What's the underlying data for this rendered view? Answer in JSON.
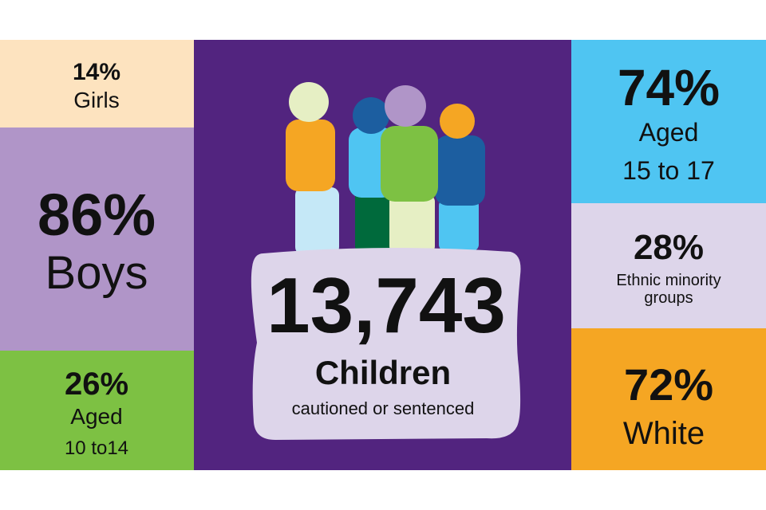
{
  "left": [
    {
      "value": "14%",
      "label": "Girls"
    },
    {
      "value": "86%",
      "label": "Boys"
    },
    {
      "value": "26%",
      "label": "Aged",
      "label2": "10 to14"
    }
  ],
  "center": {
    "value": "13,743",
    "label": "Children",
    "sublabel": "cautioned or sentenced"
  },
  "right": [
    {
      "value": "74%",
      "label": "Aged",
      "label2": "15 to 17"
    },
    {
      "value": "28%",
      "label": "Ethnic minority",
      "label2": "groups"
    },
    {
      "value": "72%",
      "label": "White"
    }
  ]
}
